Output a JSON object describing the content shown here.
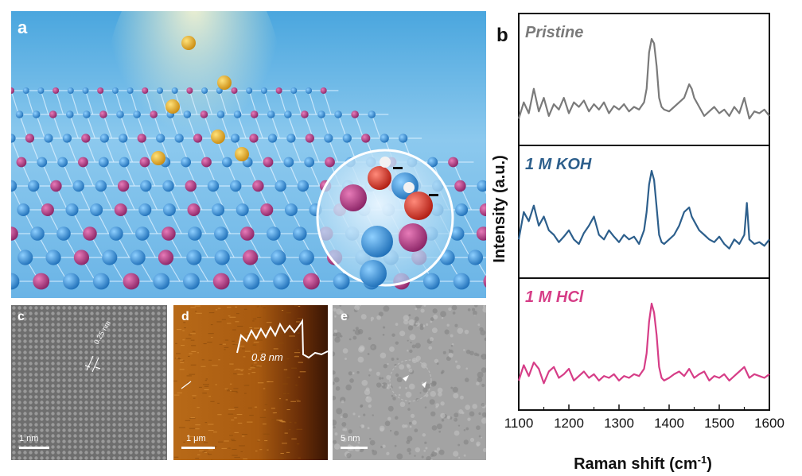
{
  "panels": {
    "a": {
      "label": "a"
    },
    "b": {
      "label": "b"
    },
    "c": {
      "label": "c",
      "scale": "1 nm",
      "lattice": "0.25 nm"
    },
    "d": {
      "label": "d",
      "scale": "1 μm",
      "height": "0.8 nm"
    },
    "e": {
      "label": "e",
      "scale": "5 nm"
    }
  },
  "chart_data": {
    "type": "line",
    "xlabel": "Raman shift (cm",
    "xlabel_sup": "-1",
    "xlabel_end": ")",
    "ylabel": "Intensity (a.u.)",
    "xlim": [
      1100,
      1600
    ],
    "xticks": [
      "1100",
      "1200",
      "1300",
      "1400",
      "1500",
      "1600"
    ],
    "series": [
      {
        "name": "Pristine",
        "color": "#7a7a7a",
        "x": [
          1100,
          1110,
          1120,
          1130,
          1140,
          1150,
          1160,
          1170,
          1180,
          1190,
          1200,
          1210,
          1220,
          1230,
          1240,
          1250,
          1260,
          1270,
          1280,
          1290,
          1300,
          1310,
          1320,
          1330,
          1340,
          1350,
          1355,
          1360,
          1365,
          1370,
          1375,
          1380,
          1385,
          1390,
          1400,
          1410,
          1420,
          1430,
          1440,
          1445,
          1450,
          1460,
          1470,
          1480,
          1490,
          1500,
          1510,
          1520,
          1530,
          1540,
          1550,
          1560,
          1570,
          1580,
          1590,
          1600
        ],
        "y": [
          0.12,
          0.3,
          0.18,
          0.45,
          0.2,
          0.35,
          0.15,
          0.28,
          0.22,
          0.35,
          0.18,
          0.3,
          0.25,
          0.32,
          0.2,
          0.28,
          0.22,
          0.3,
          0.18,
          0.26,
          0.22,
          0.28,
          0.2,
          0.25,
          0.22,
          0.3,
          0.45,
          0.85,
          1.0,
          0.95,
          0.7,
          0.35,
          0.25,
          0.22,
          0.2,
          0.25,
          0.3,
          0.35,
          0.5,
          0.45,
          0.35,
          0.25,
          0.15,
          0.2,
          0.25,
          0.18,
          0.22,
          0.15,
          0.25,
          0.18,
          0.35,
          0.12,
          0.2,
          0.18,
          0.22,
          0.15
        ]
      },
      {
        "name": "1 M KOH",
        "color": "#2d5f8c",
        "x": [
          1100,
          1110,
          1120,
          1130,
          1140,
          1150,
          1160,
          1170,
          1180,
          1190,
          1200,
          1210,
          1220,
          1230,
          1240,
          1250,
          1260,
          1270,
          1280,
          1290,
          1300,
          1310,
          1320,
          1330,
          1340,
          1350,
          1355,
          1360,
          1365,
          1370,
          1375,
          1380,
          1385,
          1390,
          1400,
          1410,
          1420,
          1430,
          1440,
          1445,
          1450,
          1460,
          1470,
          1480,
          1490,
          1500,
          1510,
          1520,
          1530,
          1540,
          1550,
          1555,
          1560,
          1570,
          1580,
          1590,
          1600
        ],
        "y": [
          0.25,
          0.55,
          0.45,
          0.62,
          0.4,
          0.5,
          0.35,
          0.3,
          0.22,
          0.28,
          0.35,
          0.25,
          0.2,
          0.32,
          0.4,
          0.5,
          0.3,
          0.25,
          0.35,
          0.28,
          0.22,
          0.3,
          0.25,
          0.28,
          0.2,
          0.35,
          0.55,
          0.85,
          1.0,
          0.9,
          0.6,
          0.3,
          0.22,
          0.2,
          0.25,
          0.3,
          0.4,
          0.55,
          0.6,
          0.5,
          0.45,
          0.35,
          0.3,
          0.25,
          0.22,
          0.28,
          0.2,
          0.15,
          0.25,
          0.2,
          0.3,
          0.65,
          0.25,
          0.2,
          0.22,
          0.18,
          0.25
        ]
      },
      {
        "name": "1 M HCl",
        "color": "#d63d87",
        "x": [
          1100,
          1110,
          1120,
          1130,
          1140,
          1150,
          1160,
          1170,
          1180,
          1190,
          1200,
          1210,
          1220,
          1230,
          1240,
          1250,
          1260,
          1270,
          1280,
          1290,
          1300,
          1310,
          1320,
          1330,
          1340,
          1350,
          1355,
          1360,
          1365,
          1370,
          1375,
          1380,
          1385,
          1390,
          1400,
          1410,
          1420,
          1430,
          1440,
          1450,
          1460,
          1470,
          1480,
          1490,
          1500,
          1510,
          1520,
          1530,
          1540,
          1550,
          1560,
          1570,
          1580,
          1590,
          1600
        ],
        "y": [
          0.15,
          0.32,
          0.2,
          0.35,
          0.28,
          0.12,
          0.25,
          0.3,
          0.18,
          0.22,
          0.28,
          0.15,
          0.2,
          0.25,
          0.18,
          0.22,
          0.15,
          0.2,
          0.18,
          0.22,
          0.15,
          0.2,
          0.18,
          0.22,
          0.2,
          0.28,
          0.45,
          0.8,
          1.0,
          0.9,
          0.65,
          0.3,
          0.18,
          0.15,
          0.18,
          0.22,
          0.25,
          0.2,
          0.28,
          0.18,
          0.22,
          0.25,
          0.15,
          0.2,
          0.18,
          0.22,
          0.15,
          0.2,
          0.25,
          0.3,
          0.18,
          0.22,
          0.2,
          0.18,
          0.22
        ]
      }
    ]
  }
}
